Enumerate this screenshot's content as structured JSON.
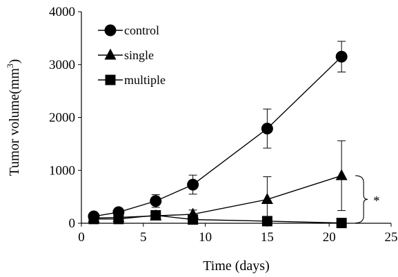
{
  "chart_data": {
    "type": "line",
    "xlabel": "Time (days)",
    "ylabel": "Tumor volume(mm",
    "ylabel_unit_superscript": "3",
    "ylabel_close": ")",
    "xlim": [
      0,
      25
    ],
    "ylim": [
      0,
      4000
    ],
    "xticks": [
      0,
      5,
      10,
      15,
      20,
      25
    ],
    "yticks": [
      0,
      1000,
      2000,
      3000,
      4000
    ],
    "grid": false,
    "legend_position": "top-left",
    "colors": {
      "line": "#000000",
      "axis": "#000000",
      "background": "#ffffff"
    },
    "series": [
      {
        "name": "control",
        "marker": "circle",
        "x": [
          1,
          3,
          6,
          9,
          15,
          21
        ],
        "y": [
          130,
          210,
          420,
          730,
          1790,
          3150
        ],
        "error": [
          20,
          40,
          120,
          180,
          370,
          290
        ]
      },
      {
        "name": "single",
        "marker": "triangle",
        "x": [
          1,
          3,
          6,
          9,
          15,
          21
        ],
        "y": [
          100,
          110,
          140,
          170,
          450,
          900
        ],
        "error": [
          20,
          30,
          60,
          80,
          430,
          660
        ]
      },
      {
        "name": "multiple",
        "marker": "square",
        "x": [
          1,
          3,
          6,
          9,
          15,
          21
        ],
        "y": [
          80,
          80,
          150,
          70,
          40,
          5
        ],
        "error": [
          15,
          25,
          70,
          30,
          20,
          5
        ]
      }
    ],
    "annotations": [
      {
        "text": "*",
        "type": "significance-bracket",
        "between_series": [
          "single",
          "multiple"
        ],
        "at_x": 21
      }
    ]
  }
}
